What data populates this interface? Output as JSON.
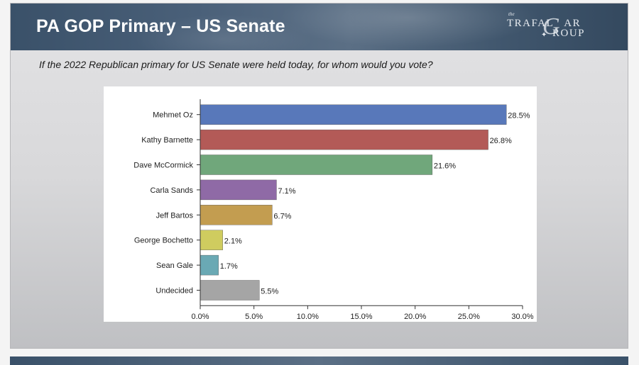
{
  "slide": {
    "title": "PA GOP Primary – US Senate",
    "question": "If the 2022 Republican primary for US Senate were held today, for whom would you vote?"
  },
  "logo": {
    "the": "the",
    "line1": "TRAFAL",
    "line1_tail": "AR",
    "line2": "ROUP",
    "g": "G"
  },
  "chart_data": {
    "type": "bar",
    "orientation": "horizontal",
    "categories": [
      "Mehmet Oz",
      "Kathy Barnette",
      "Dave McCormick",
      "Carla Sands",
      "Jeff Bartos",
      "George Bochetto",
      "Sean Gale",
      "Undecided"
    ],
    "values": [
      28.5,
      26.8,
      21.6,
      7.1,
      6.7,
      2.1,
      1.7,
      5.5
    ],
    "value_labels": [
      "28.5%",
      "26.8%",
      "21.6%",
      "7.1%",
      "6.7%",
      "2.1%",
      "1.7%",
      "5.5%"
    ],
    "colors": [
      "#5878ba",
      "#b35a57",
      "#70a77b",
      "#8f6aa6",
      "#c39d50",
      "#cfcc5f",
      "#6aa9b4",
      "#a5a5a5"
    ],
    "xlim": [
      0,
      30
    ],
    "xticks": [
      0,
      5,
      10,
      15,
      20,
      25,
      30
    ],
    "xtick_labels": [
      "0.0%",
      "5.0%",
      "10.0%",
      "15.0%",
      "20.0%",
      "25.0%",
      "30.0%"
    ],
    "grid": false,
    "legend": false
  }
}
